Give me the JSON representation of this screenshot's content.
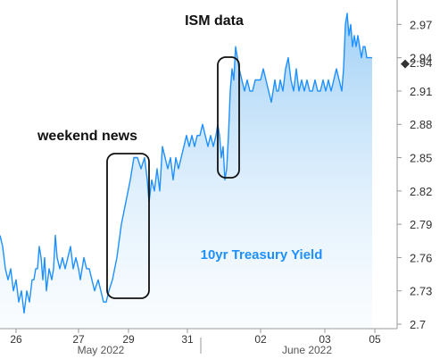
{
  "chart_data": {
    "type": "area",
    "title": "",
    "y_ticks": [
      "2.97",
      "2.94",
      "2.91",
      "2.88",
      "2.85",
      "2.82",
      "2.79",
      "2.76",
      "2.73",
      "2.7"
    ],
    "ylim": [
      2.696,
      2.992
    ],
    "x_ticks": [
      "26",
      "27",
      "29",
      "31",
      "02",
      "03",
      "05"
    ],
    "months": [
      "May 2022",
      "June 2022"
    ],
    "current_value": "2.94",
    "series": [
      {
        "name": "10yr Treasury Yield",
        "color": "#1e90ff",
        "points": [
          [
            0,
            2.78
          ],
          [
            3,
            2.77
          ],
          [
            6,
            2.75
          ],
          [
            9,
            2.74
          ],
          [
            12,
            2.75
          ],
          [
            15,
            2.73
          ],
          [
            18,
            2.74
          ],
          [
            21,
            2.72
          ],
          [
            24,
            2.73
          ],
          [
            27,
            2.71
          ],
          [
            30,
            2.73
          ],
          [
            33,
            2.72
          ],
          [
            36,
            2.74
          ],
          [
            38,
            2.74
          ],
          [
            40,
            2.75
          ],
          [
            42,
            2.75
          ],
          [
            44,
            2.77
          ],
          [
            46,
            2.76
          ],
          [
            48,
            2.74
          ],
          [
            50,
            2.76
          ],
          [
            52,
            2.73
          ],
          [
            55,
            2.75
          ],
          [
            58,
            2.74
          ],
          [
            60,
            2.75
          ],
          [
            62,
            2.78
          ],
          [
            64,
            2.76
          ],
          [
            67,
            2.75
          ],
          [
            70,
            2.76
          ],
          [
            73,
            2.75
          ],
          [
            76,
            2.76
          ],
          [
            79,
            2.77
          ],
          [
            82,
            2.75
          ],
          [
            85,
            2.76
          ],
          [
            88,
            2.75
          ],
          [
            90,
            2.74
          ],
          [
            92,
            2.75
          ],
          [
            94,
            2.76
          ],
          [
            97,
            2.75
          ],
          [
            100,
            2.75
          ],
          [
            103,
            2.74
          ],
          [
            106,
            2.73
          ],
          [
            110,
            2.74
          ],
          [
            113,
            2.73
          ],
          [
            116,
            2.72
          ],
          [
            119,
            2.72
          ],
          [
            122,
            2.73
          ],
          [
            126,
            2.74
          ],
          [
            131,
            2.76
          ],
          [
            136,
            2.79
          ],
          [
            141,
            2.81
          ],
          [
            146,
            2.83
          ],
          [
            150,
            2.85
          ],
          [
            154,
            2.85
          ],
          [
            158,
            2.84
          ],
          [
            162,
            2.85
          ],
          [
            165,
            2.83
          ],
          [
            167,
            2.81
          ],
          [
            170,
            2.83
          ],
          [
            173,
            2.82
          ],
          [
            176,
            2.84
          ],
          [
            179,
            2.82
          ],
          [
            182,
            2.86
          ],
          [
            185,
            2.85
          ],
          [
            188,
            2.84
          ],
          [
            191,
            2.85
          ],
          [
            194,
            2.83
          ],
          [
            197,
            2.85
          ],
          [
            200,
            2.84
          ],
          [
            203,
            2.85
          ],
          [
            206,
            2.86
          ],
          [
            209,
            2.87
          ],
          [
            212,
            2.86
          ],
          [
            215,
            2.87
          ],
          [
            218,
            2.86
          ],
          [
            221,
            2.87
          ],
          [
            224,
            2.87
          ],
          [
            227,
            2.88
          ],
          [
            230,
            2.87
          ],
          [
            233,
            2.86
          ],
          [
            236,
            2.87
          ],
          [
            239,
            2.86
          ],
          [
            242,
            2.87
          ],
          [
            244,
            2.88
          ],
          [
            246,
            2.87
          ],
          [
            248,
            2.85
          ],
          [
            250,
            2.86
          ],
          [
            252,
            2.83
          ],
          [
            254,
            2.84
          ],
          [
            256,
            2.87
          ],
          [
            258,
            2.91
          ],
          [
            260,
            2.93
          ],
          [
            262,
            2.92
          ],
          [
            264,
            2.95
          ],
          [
            266,
            2.94
          ],
          [
            268,
            2.93
          ],
          [
            271,
            2.92
          ],
          [
            274,
            2.91
          ],
          [
            277,
            2.92
          ],
          [
            280,
            2.91
          ],
          [
            283,
            2.91
          ],
          [
            286,
            2.92
          ],
          [
            289,
            2.92
          ],
          [
            292,
            2.92
          ],
          [
            295,
            2.93
          ],
          [
            298,
            2.92
          ],
          [
            301,
            2.91
          ],
          [
            304,
            2.9
          ],
          [
            306,
            2.91
          ],
          [
            308,
            2.92
          ],
          [
            310,
            2.91
          ],
          [
            312,
            2.91
          ],
          [
            314,
            2.92
          ],
          [
            317,
            2.91
          ],
          [
            320,
            2.93
          ],
          [
            323,
            2.94
          ],
          [
            326,
            2.92
          ],
          [
            329,
            2.91
          ],
          [
            332,
            2.93
          ],
          [
            335,
            2.91
          ],
          [
            338,
            2.92
          ],
          [
            341,
            2.91
          ],
          [
            344,
            2.92
          ],
          [
            347,
            2.91
          ],
          [
            350,
            2.91
          ],
          [
            353,
            2.92
          ],
          [
            356,
            2.91
          ],
          [
            359,
            2.91
          ],
          [
            362,
            2.92
          ],
          [
            365,
            2.91
          ],
          [
            368,
            2.92
          ],
          [
            371,
            2.91
          ],
          [
            374,
            2.92
          ],
          [
            377,
            2.93
          ],
          [
            380,
            2.92
          ],
          [
            383,
            2.91
          ],
          [
            385,
            2.93
          ],
          [
            387,
            2.97
          ],
          [
            389,
            2.98
          ],
          [
            391,
            2.96
          ],
          [
            393,
            2.97
          ],
          [
            395,
            2.95
          ],
          [
            397,
            2.96
          ],
          [
            399,
            2.95
          ],
          [
            401,
            2.96
          ],
          [
            403,
            2.95
          ],
          [
            405,
            2.94
          ],
          [
            407,
            2.95
          ],
          [
            409,
            2.95
          ],
          [
            411,
            2.94
          ],
          [
            413,
            2.94
          ],
          [
            415,
            2.94
          ],
          [
            417,
            2.94
          ]
        ]
      }
    ],
    "annotations": [
      "ISM data",
      "weekend news"
    ]
  }
}
